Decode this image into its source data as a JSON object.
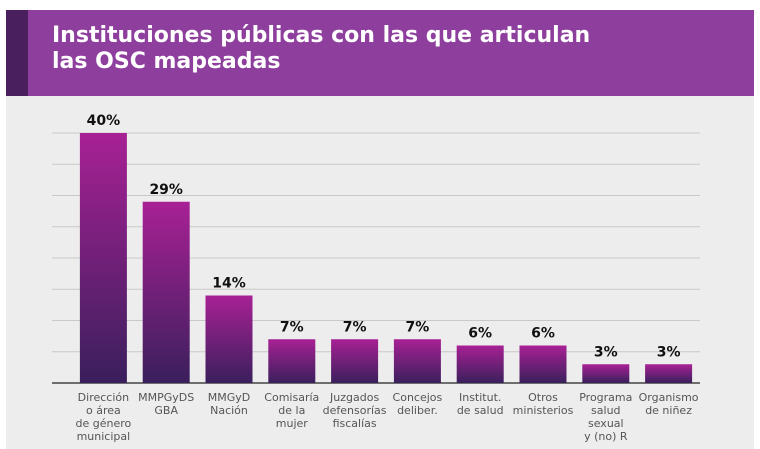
{
  "chart_data": {
    "type": "bar",
    "title": "Instituciones públicas con las que articulan\nlas OSC mapeadas",
    "categories": [
      "Dirección\no área\nde género\nmunicipal",
      "MMPGyDS\nGBA",
      "MMGyD\nNación",
      "Comisaría\nde la\nmujer",
      "Juzgados\ndefensorías\nfiscalías",
      "Concejos\ndeliber.",
      "Institut.\nde salud",
      "Otros\nministerios",
      "Programa\nsalud\nsexual\ny (no) R",
      "Organismo\nde niñez"
    ],
    "values": [
      40,
      29,
      14,
      7,
      7,
      7,
      6,
      6,
      3,
      3
    ],
    "value_labels": [
      "40%",
      "29%",
      "14%",
      "7%",
      "7%",
      "7%",
      "6%",
      "6%",
      "3%",
      "3%"
    ],
    "color": "#a82195",
    "ylim": [
      0,
      40
    ],
    "yticks": [
      0,
      5,
      10,
      15,
      20,
      25,
      30,
      35,
      40
    ],
    "grid": true
  }
}
